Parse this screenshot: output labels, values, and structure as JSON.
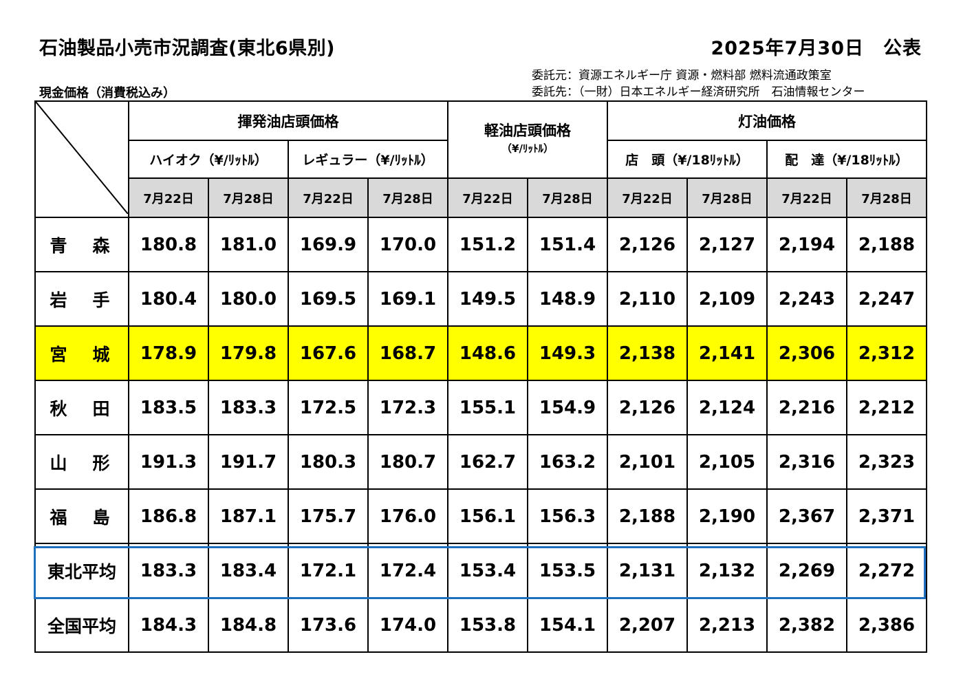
{
  "header": {
    "title": "石油製品小売市況調査(東北6県別)",
    "date": "2025年7月30日　公表",
    "subtitle": "現金価格（消費税込み）",
    "commissioner": "委託元：資源エネルギー庁 資源・燃料部 燃料流通政策室",
    "contractor": "委託先：（一財）日本エネルギー経済研究所　石油情報センター"
  },
  "table": {
    "groups": {
      "gasoline": "揮発油店頭価格",
      "diesel": "軽油店頭価格",
      "diesel_unit": "（¥/ﾘｯﾄﾙ）",
      "kerosene": "灯油価格"
    },
    "subgroups": {
      "highoctane": "ハイオク（¥/ﾘｯﾄﾙ）",
      "regular": "レギュラー（¥/ﾘｯﾄﾙ）",
      "store": "店　頭（¥/18ﾘｯﾄﾙ）",
      "delivery": "配　達（¥/18ﾘｯﾄﾙ）"
    },
    "dates": [
      "7月22日",
      "7月28日",
      "7月22日",
      "7月28日",
      "7月22日",
      "7月28日",
      "7月22日",
      "7月28日",
      "7月22日",
      "7月28日"
    ],
    "rows": [
      {
        "name": "青　森",
        "values": [
          "180.8",
          "181.0",
          "169.9",
          "170.0",
          "151.2",
          "151.4",
          "2,126",
          "2,127",
          "2,194",
          "2,188"
        ]
      },
      {
        "name": "岩　手",
        "values": [
          "180.4",
          "180.0",
          "169.5",
          "169.1",
          "149.5",
          "148.9",
          "2,110",
          "2,109",
          "2,243",
          "2,247"
        ]
      },
      {
        "name": "宮　城",
        "values": [
          "178.9",
          "179.8",
          "167.6",
          "168.7",
          "148.6",
          "149.3",
          "2,138",
          "2,141",
          "2,306",
          "2,312"
        ]
      },
      {
        "name": "秋　田",
        "values": [
          "183.5",
          "183.3",
          "172.5",
          "172.3",
          "155.1",
          "154.9",
          "2,126",
          "2,124",
          "2,216",
          "2,212"
        ]
      },
      {
        "name": "山　形",
        "values": [
          "191.3",
          "191.7",
          "180.3",
          "180.7",
          "162.7",
          "163.2",
          "2,101",
          "2,105",
          "2,316",
          "2,323"
        ]
      },
      {
        "name": "福　島",
        "values": [
          "186.8",
          "187.1",
          "175.7",
          "176.0",
          "156.1",
          "156.3",
          "2,188",
          "2,190",
          "2,367",
          "2,371"
        ]
      },
      {
        "name": "東北平均",
        "values": [
          "183.3",
          "183.4",
          "172.1",
          "172.4",
          "153.4",
          "153.5",
          "2,131",
          "2,132",
          "2,269",
          "2,272"
        ]
      },
      {
        "name": "全国平均",
        "values": [
          "184.3",
          "184.8",
          "173.6",
          "174.0",
          "153.8",
          "154.1",
          "2,207",
          "2,213",
          "2,382",
          "2,386"
        ]
      }
    ]
  },
  "colors": {
    "highlight_row": "#ffff00",
    "tohoku_average_box": "#1f6fbf",
    "date_header_bg": "#d9d9d9"
  }
}
